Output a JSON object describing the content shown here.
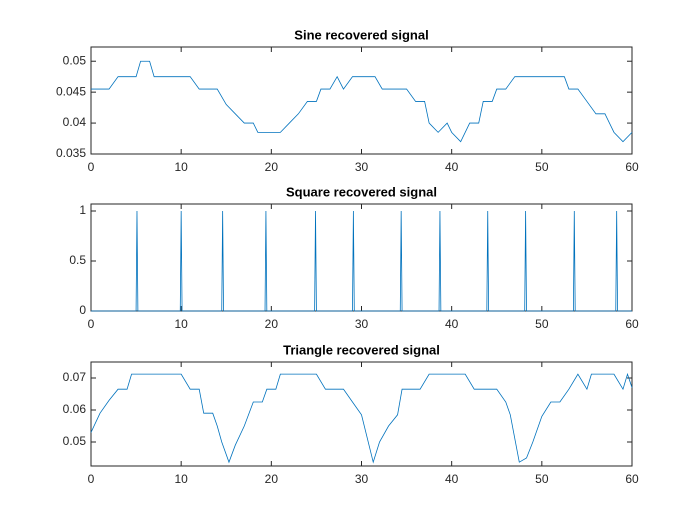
{
  "chart_data": [
    {
      "type": "line",
      "title": "Sine recovered signal",
      "color": "#0072BD",
      "x": [
        0,
        2,
        3,
        5,
        5.5,
        6.5,
        7,
        11,
        12,
        14,
        15,
        16,
        17,
        18,
        18.5,
        21,
        22,
        23,
        24,
        25,
        25.5,
        26.5,
        27.3,
        28,
        29,
        31.5,
        32.3,
        35,
        36,
        37,
        37.5,
        38.5,
        39.5,
        40,
        41,
        42,
        43,
        43.5,
        44.5,
        45,
        46,
        47,
        52.5,
        53,
        54,
        55,
        56,
        57,
        58,
        59,
        60
      ],
      "values": [
        0.0455,
        0.0455,
        0.0475,
        0.0475,
        0.05,
        0.05,
        0.0475,
        0.0475,
        0.0455,
        0.0455,
        0.043,
        0.0415,
        0.04,
        0.04,
        0.0385,
        0.0385,
        0.04,
        0.0415,
        0.0435,
        0.0435,
        0.0455,
        0.0455,
        0.0475,
        0.0455,
        0.0475,
        0.0475,
        0.0455,
        0.0455,
        0.0435,
        0.0435,
        0.04,
        0.0385,
        0.04,
        0.0385,
        0.037,
        0.04,
        0.04,
        0.0435,
        0.0435,
        0.0455,
        0.0455,
        0.0475,
        0.0475,
        0.0455,
        0.0455,
        0.0435,
        0.0415,
        0.0415,
        0.0385,
        0.037,
        0.0385
      ],
      "xlim": [
        0,
        60
      ],
      "xticks": [
        0,
        10,
        20,
        30,
        40,
        50,
        60
      ],
      "ylim": [
        0.035,
        0.0523
      ],
      "yticks": [
        0.035,
        0.04,
        0.045,
        0.05
      ]
    },
    {
      "type": "line",
      "title": "Square recovered signal",
      "color": "#0072BD",
      "x": [
        0,
        5.0,
        5.1,
        5.2,
        9.9,
        10.0,
        10.1,
        14.5,
        14.6,
        14.7,
        19.3,
        19.4,
        19.5,
        24.8,
        24.9,
        25.0,
        29.0,
        29.1,
        29.2,
        34.3,
        34.4,
        34.5,
        38.6,
        38.7,
        38.8,
        43.9,
        44.0,
        44.1,
        48.1,
        48.2,
        48.3,
        53.5,
        53.6,
        53.7,
        58.2,
        58.3,
        58.4,
        60
      ],
      "values": [
        0,
        0,
        1,
        0,
        0,
        1,
        0,
        0,
        1,
        0,
        0,
        1,
        0,
        0,
        1,
        0,
        0,
        1,
        0,
        0,
        1,
        0,
        0,
        1,
        0,
        0,
        1,
        0,
        0,
        1,
        0,
        0,
        1,
        0,
        0,
        1,
        0,
        0
      ],
      "xlim": [
        0,
        60
      ],
      "xticks": [
        0,
        10,
        20,
        30,
        40,
        50,
        60
      ],
      "ylim": [
        0,
        1.07
      ],
      "yticks": [
        0,
        0.5,
        1
      ]
    },
    {
      "type": "line",
      "title": "Triangle recovered signal",
      "color": "#0072BD",
      "x": [
        0,
        1,
        2,
        3,
        4,
        4.5,
        10,
        11,
        12,
        12.5,
        13.5,
        14,
        14.5,
        15.3,
        16,
        17,
        18,
        19,
        19.5,
        20.5,
        21,
        25,
        26,
        28,
        29,
        30,
        31.3,
        32,
        33,
        34,
        34.5,
        36.5,
        37.5,
        41.5,
        42.5,
        45,
        46,
        46.5,
        47.5,
        48.3,
        49,
        50,
        51,
        52,
        53,
        54,
        55,
        55.5,
        58,
        59,
        59.5,
        60
      ],
      "values": [
        0.053,
        0.059,
        0.063,
        0.0665,
        0.0665,
        0.0712,
        0.0712,
        0.0665,
        0.0665,
        0.059,
        0.059,
        0.055,
        0.05,
        0.0437,
        0.049,
        0.055,
        0.0625,
        0.0625,
        0.0665,
        0.0665,
        0.0712,
        0.0712,
        0.0665,
        0.0665,
        0.0625,
        0.0585,
        0.0437,
        0.05,
        0.055,
        0.0585,
        0.0665,
        0.0665,
        0.0712,
        0.0712,
        0.0665,
        0.0665,
        0.0625,
        0.0585,
        0.0437,
        0.045,
        0.05,
        0.058,
        0.0625,
        0.0625,
        0.0665,
        0.0712,
        0.0665,
        0.0712,
        0.0712,
        0.0665,
        0.0712,
        0.067
      ],
      "xlim": [
        0,
        60
      ],
      "xticks": [
        0,
        10,
        20,
        30,
        40,
        50,
        60
      ],
      "ylim": [
        0.0425,
        0.075
      ],
      "yticks": [
        0.05,
        0.06,
        0.07
      ]
    }
  ]
}
